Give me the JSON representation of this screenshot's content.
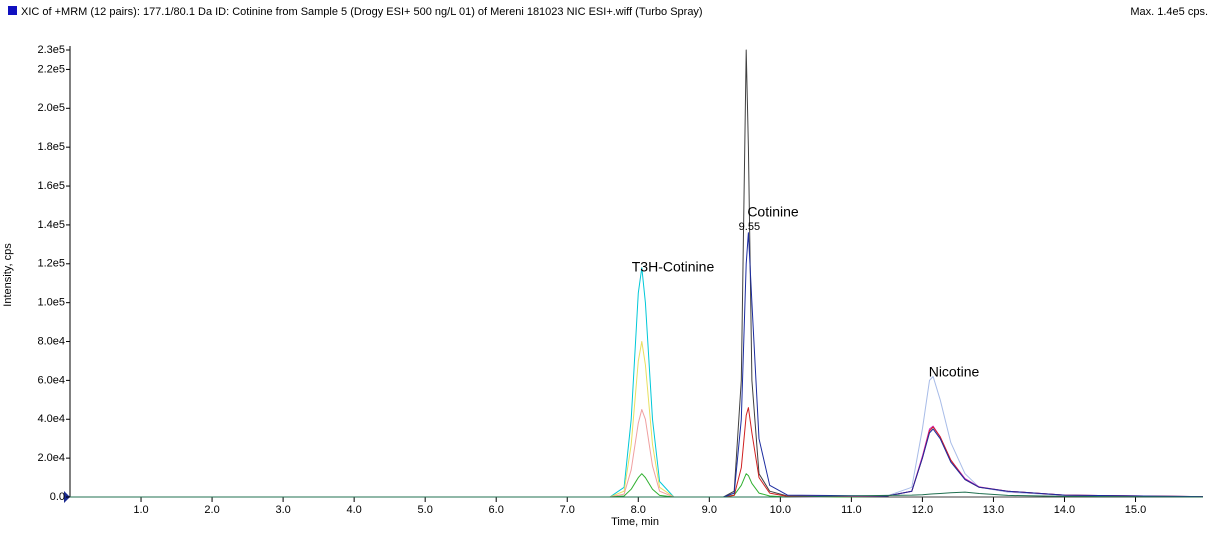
{
  "chart_data": {
    "type": "line",
    "title": "XIC of +MRM (12 pairs): 177.1/80.1 Da ID: Cotinine from Sample 5 (Drogy ESI+ 500 ng/L 01) of Mereni 181023 NIC ESI+.wiff (Turbo Spray)",
    "max_label": "Max. 1.4e5 cps.",
    "x_label": "Time, min",
    "y_label": "Intensity, cps",
    "annotations": [
      "T3H-Cotinine",
      "Cotinine",
      "Nicotine"
    ],
    "apex_time": 9.55,
    "xlim": [
      0,
      15.95
    ],
    "ylim": [
      0,
      230000
    ],
    "xticks": [
      {
        "value": 1,
        "label": "1.0"
      },
      {
        "value": 2,
        "label": "2.0"
      },
      {
        "value": 3,
        "label": "3.0"
      },
      {
        "value": 4,
        "label": "4.0"
      },
      {
        "value": 5,
        "label": "5.0"
      },
      {
        "value": 6,
        "label": "6.0"
      },
      {
        "value": 7,
        "label": "7.0"
      },
      {
        "value": 8,
        "label": "8.0"
      },
      {
        "value": 9,
        "label": "9.0"
      },
      {
        "value": 10,
        "label": "10.0"
      },
      {
        "value": 11,
        "label": "11.0"
      },
      {
        "value": 12,
        "label": "12.0"
      },
      {
        "value": 13,
        "label": "13.0"
      },
      {
        "value": 14,
        "label": "14.0"
      },
      {
        "value": 15,
        "label": "15.0"
      }
    ],
    "yticks": [
      {
        "value": 0,
        "label": "0.0"
      },
      {
        "value": 20000,
        "label": "2.0e4"
      },
      {
        "value": 40000,
        "label": "4.0e4"
      },
      {
        "value": 60000,
        "label": "6.0e4"
      },
      {
        "value": 80000,
        "label": "8.0e4"
      },
      {
        "value": 100000,
        "label": "1.0e5"
      },
      {
        "value": 120000,
        "label": "1.2e5"
      },
      {
        "value": 140000,
        "label": "1.4e5"
      },
      {
        "value": 160000,
        "label": "1.6e5"
      },
      {
        "value": 180000,
        "label": "1.8e5"
      },
      {
        "value": 200000,
        "label": "2.0e5"
      },
      {
        "value": 220000,
        "label": "2.2e5"
      },
      {
        "value": 230000,
        "label": "2.3e5"
      }
    ],
    "x": [
      0,
      7.6,
      7.8,
      7.9,
      8.0,
      8.05,
      8.1,
      8.2,
      8.3,
      8.5,
      9.2,
      9.35,
      9.45,
      9.52,
      9.55,
      9.6,
      9.7,
      9.85,
      10.1,
      11.5,
      11.85,
      12.0,
      12.1,
      12.15,
      12.25,
      12.4,
      12.6,
      12.8,
      13.2,
      14.0,
      15.95
    ],
    "series": [
      {
        "color": "#00c8d8",
        "values": [
          0,
          0,
          5000,
          40000,
          105000,
          118000,
          100000,
          40000,
          8000,
          0,
          0,
          0,
          0,
          0,
          0,
          0,
          0,
          0,
          0,
          0,
          0,
          0,
          0,
          0,
          0,
          0,
          0,
          0,
          0,
          0,
          0
        ]
      },
      {
        "color": "#e8e060",
        "values": [
          0,
          0,
          3000,
          27000,
          70000,
          80000,
          68000,
          27000,
          5000,
          0,
          0,
          0,
          0,
          0,
          0,
          0,
          0,
          0,
          0,
          0,
          0,
          0,
          0,
          0,
          0,
          0,
          0,
          0,
          0,
          0,
          0
        ]
      },
      {
        "color": "#f0a0a0",
        "values": [
          0,
          0,
          1500,
          14000,
          38000,
          45000,
          40000,
          16000,
          3000,
          0,
          0,
          0,
          0,
          0,
          0,
          0,
          0,
          0,
          0,
          0,
          0,
          0,
          0,
          0,
          0,
          0,
          0,
          0,
          0,
          0,
          0
        ]
      },
      {
        "color": "#30b030",
        "values": [
          0,
          0,
          500,
          4000,
          10000,
          12000,
          10000,
          4000,
          800,
          0,
          0,
          1000,
          6000,
          12000,
          11000,
          7000,
          2000,
          500,
          0,
          0,
          0,
          0,
          0,
          0,
          0,
          0,
          0,
          0,
          0,
          0,
          0
        ]
      },
      {
        "color": "#404040",
        "values": [
          0,
          0,
          0,
          0,
          0,
          0,
          0,
          0,
          0,
          0,
          0,
          3000,
          60000,
          230000,
          180000,
          60000,
          12000,
          3000,
          500,
          0,
          0,
          0,
          0,
          0,
          0,
          0,
          0,
          0,
          0,
          0,
          0
        ]
      },
      {
        "color": "#a8bce8",
        "values": [
          0,
          0,
          0,
          0,
          0,
          0,
          0,
          0,
          0,
          0,
          0,
          0,
          0,
          0,
          0,
          0,
          0,
          0,
          0,
          500,
          5000,
          35000,
          60000,
          62000,
          50000,
          28000,
          12000,
          5000,
          2500,
          800,
          200
        ]
      },
      {
        "color": "#d020c0",
        "values": [
          0,
          0,
          0,
          0,
          0,
          0,
          0,
          0,
          0,
          0,
          0,
          0,
          0,
          0,
          0,
          0,
          0,
          0,
          0,
          500,
          3000,
          21000,
          35000,
          36500,
          31000,
          19000,
          9500,
          5200,
          3000,
          1000,
          200
        ]
      },
      {
        "color": "#d02020",
        "values": [
          0,
          0,
          0,
          0,
          0,
          0,
          0,
          0,
          0,
          0,
          0,
          800,
          15000,
          42000,
          46000,
          33000,
          10000,
          2000,
          300,
          500,
          3000,
          20000,
          34000,
          36000,
          31000,
          19000,
          9000,
          5000,
          3000,
          1000,
          200
        ]
      },
      {
        "color": "#1c2ca0",
        "values": [
          0,
          0,
          0,
          0,
          0,
          0,
          0,
          0,
          0,
          0,
          0,
          2000,
          40000,
          120000,
          136000,
          100000,
          30000,
          6000,
          1000,
          500,
          3000,
          20000,
          33000,
          35000,
          30000,
          18000,
          9000,
          5000,
          3000,
          1000,
          200
        ]
      },
      {
        "color": "#207050",
        "values": [
          0,
          0,
          0,
          0,
          0,
          0,
          0,
          0,
          0,
          0,
          0,
          0,
          0,
          0,
          0,
          0,
          0,
          0,
          0,
          800,
          1000,
          1200,
          1500,
          1600,
          1800,
          2200,
          2500,
          1800,
          800,
          300,
          0
        ]
      }
    ]
  }
}
